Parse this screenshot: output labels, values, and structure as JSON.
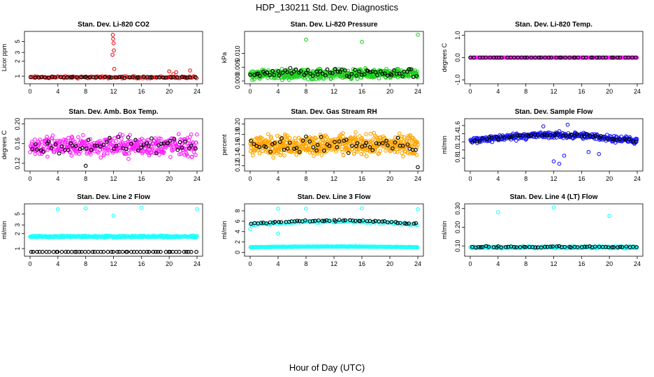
{
  "figure": {
    "title": "HDP_130211  Std. Dev. Diagnostics",
    "xlabel": "Hour of Day (UTC)"
  },
  "colors": {
    "reference": "#000000",
    "red": "#e41a1c",
    "green": "#1fd01f",
    "magenta": "#ff1fff",
    "orange": "#ffa500",
    "blue": "#1a1aff",
    "cyan": "#1fffff"
  },
  "chart_data": [
    {
      "type": "scatter",
      "title": "Stan. Dev. Li-820 CO2",
      "ylabel": "Licor ppm",
      "xlim": [
        0,
        24
      ],
      "ylim": [
        0.8,
        7
      ],
      "yscale": "log",
      "xticks": [
        "0",
        "4",
        "8",
        "12",
        "16",
        "20",
        "24"
      ],
      "yticks": [
        1,
        2,
        3,
        5
      ],
      "series": [
        {
          "color": "#e41a1c",
          "baseline": 0.95,
          "spread": 0.07,
          "count": 140,
          "outliers": [
            [
              11.9,
              6.8
            ],
            [
              11.95,
              5.6
            ],
            [
              12.0,
              4.6
            ],
            [
              12.05,
              3.3
            ],
            [
              11.85,
              2.7
            ],
            [
              12.1,
              1.4
            ],
            [
              20.0,
              1.25
            ],
            [
              21.0,
              1.2
            ],
            [
              23.0,
              1.3
            ],
            [
              20.6,
              1.1
            ]
          ]
        },
        {
          "color": "#000000",
          "baseline": 0.95,
          "spread": 0.04,
          "count": 48,
          "outliers": []
        }
      ]
    },
    {
      "type": "scatter",
      "title": "Stan. Dev. Li-820 Pressure",
      "ylabel": "kPa",
      "xlim": [
        0,
        24
      ],
      "ylim": [
        0,
        0.017
      ],
      "yscale": "linear",
      "xticks": [
        "0",
        "4",
        "8",
        "12",
        "16",
        "20",
        "24"
      ],
      "yticks": [
        0.0,
        0.005,
        0.01
      ],
      "ytick_labels": [
        "0.000",
        "0.005",
        "0.010"
      ],
      "series": [
        {
          "color": "#1fd01f",
          "baseline": 0.0025,
          "spread": 0.0025,
          "count": 520,
          "outliers": [
            [
              8.0,
              0.015
            ],
            [
              16.0,
              0.0142
            ],
            [
              24.0,
              0.0168
            ]
          ]
        },
        {
          "color": "#000000",
          "baseline": 0.003,
          "spread": 0.0025,
          "count": 70,
          "outliers": []
        }
      ]
    },
    {
      "type": "scatter",
      "title": "Stan. Dev. Li-820 Temp.",
      "ylabel": "degrees C",
      "xlim": [
        0,
        24
      ],
      "ylim": [
        -1.05,
        1.05
      ],
      "yscale": "linear",
      "xticks": [
        "0",
        "4",
        "8",
        "12",
        "16",
        "20",
        "24"
      ],
      "yticks": [
        -1.0,
        0.0,
        1.0
      ],
      "ytick_labels": [
        "-1.0",
        "0.0",
        "1.0"
      ],
      "series": [
        {
          "color": "#ff1fff",
          "baseline": 0.0,
          "spread": 0.0,
          "count": 260,
          "outliers": []
        },
        {
          "color": "#000000",
          "baseline": 0.0,
          "spread": 0.0,
          "count": 48,
          "outliers": []
        }
      ]
    },
    {
      "type": "scatter",
      "title": "Stan. Dev. Amb. Box Temp.",
      "ylabel": "degrees C",
      "xlim": [
        0,
        24
      ],
      "ylim": [
        0.11,
        0.205
      ],
      "yscale": "linear",
      "xticks": [
        "0",
        "4",
        "8",
        "12",
        "16",
        "20",
        "24"
      ],
      "yticks": [
        0.12,
        0.16,
        0.2
      ],
      "ytick_labels": [
        "0.12",
        "0.16",
        "0.20"
      ],
      "series": [
        {
          "color": "#ff1fff",
          "baseline": 0.155,
          "spread": 0.03,
          "count": 420,
          "outliers": []
        },
        {
          "color": "#000000",
          "baseline": 0.155,
          "spread": 0.025,
          "count": 55,
          "outliers": [
            [
              8.0,
              0.115
            ]
          ]
        }
      ]
    },
    {
      "type": "scatter",
      "title": "Stan. Dev. Gas Stream RH",
      "ylabel": "percent",
      "xlim": [
        0,
        24
      ],
      "ylim": [
        0.115,
        0.205
      ],
      "yscale": "linear",
      "xticks": [
        "0",
        "4",
        "8",
        "12",
        "16",
        "20",
        "24"
      ],
      "yticks": [
        0.12,
        0.14,
        0.16,
        0.18,
        0.2
      ],
      "ytick_labels": [
        "0.12",
        "0.14",
        "0.16",
        "0.18",
        "0.20"
      ],
      "series": [
        {
          "color": "#ffa500",
          "baseline": 0.16,
          "spread": 0.028,
          "count": 560,
          "outliers": []
        },
        {
          "color": "#000000",
          "baseline": 0.16,
          "spread": 0.022,
          "count": 55,
          "outliers": [
            [
              24.0,
              0.117
            ]
          ]
        }
      ]
    },
    {
      "type": "scatter",
      "title": "Stan. Dev. Sample Flow",
      "ylabel": "ml/min",
      "xlim": [
        0,
        24
      ],
      "ylim": [
        0.55,
        1.7
      ],
      "yscale": "linear",
      "xticks": [
        "0",
        "4",
        "8",
        "12",
        "16",
        "20",
        "24"
      ],
      "yticks": [
        0.8,
        1.0,
        1.2,
        1.4,
        1.6
      ],
      "ytick_labels": [
        "0.8",
        "1.0",
        "1.2",
        "1.4",
        "1.6"
      ],
      "trend": "arch",
      "series": [
        {
          "color": "#1a1aff",
          "baseline": 1.22,
          "spread": 0.12,
          "count": 380,
          "outliers": [
            [
              10.5,
              1.58
            ],
            [
              12.0,
              0.72
            ],
            [
              12.8,
              0.66
            ],
            [
              13.5,
              0.86
            ],
            [
              17.0,
              0.95
            ],
            [
              18.5,
              0.9
            ],
            [
              14.0,
              1.62
            ]
          ]
        },
        {
          "color": "#000000",
          "baseline": 1.22,
          "spread": 0.06,
          "count": 55,
          "outliers": []
        }
      ]
    },
    {
      "type": "scatter",
      "title": "Stan. Dev. Line 2 Flow",
      "ylabel": "ml/min",
      "xlim": [
        0,
        24
      ],
      "ylim": [
        0.8,
        7
      ],
      "yscale": "log",
      "xticks": [
        "0",
        "4",
        "8",
        "12",
        "16",
        "20",
        "24"
      ],
      "yticks": [
        1,
        2,
        3,
        5
      ],
      "series": [
        {
          "color": "#1fffff",
          "baseline": 1.75,
          "spread": 0.1,
          "count": 420,
          "outliers": [
            [
              4.0,
              6.2
            ],
            [
              8.0,
              6.5
            ],
            [
              12.0,
              4.6
            ],
            [
              16.0,
              6.6
            ],
            [
              24.0,
              6.2
            ]
          ]
        },
        {
          "color": "#000000",
          "baseline": 0.86,
          "spread": 0.0,
          "count": 55,
          "outliers": []
        }
      ]
    },
    {
      "type": "scatter",
      "title": "Stan. Dev. Line 3 Flow",
      "ylabel": "ml/min",
      "xlim": [
        0,
        24
      ],
      "ylim": [
        -0.2,
        8.8
      ],
      "yscale": "linear",
      "xticks": [
        "0",
        "4",
        "8",
        "12",
        "16",
        "20",
        "24"
      ],
      "yticks": [
        0,
        2,
        4,
        6,
        8
      ],
      "trend": "arch",
      "series": [
        {
          "color": "#1fffff",
          "baseline": 1.0,
          "spread": 0.1,
          "count": 300,
          "outliers": [
            [
              4.0,
              8.4
            ],
            [
              8.0,
              8.4
            ],
            [
              16.0,
              8.5
            ],
            [
              24.0,
              8.3
            ],
            [
              0.0,
              4.5
            ],
            [
              4.0,
              3.6
            ]
          ]
        },
        {
          "color": "#1fffff",
          "baseline": 5.3,
          "spread": 0.35,
          "count": 120,
          "outliers": []
        },
        {
          "color": "#000000",
          "baseline": 5.5,
          "spread": 0.25,
          "count": 55,
          "outliers": []
        }
      ]
    },
    {
      "type": "scatter",
      "title": "Stan. Dev. Line 4 (LT) Flow",
      "ylabel": "ml/min",
      "xlim": [
        0,
        24
      ],
      "ylim": [
        0.06,
        0.31
      ],
      "yscale": "linear",
      "xticks": [
        "0",
        "4",
        "8",
        "12",
        "16",
        "20",
        "24"
      ],
      "yticks": [
        0.1,
        0.2,
        0.3
      ],
      "ytick_labels": [
        "0.10",
        "0.20",
        "0.30"
      ],
      "series": [
        {
          "color": "#1fffff",
          "baseline": 0.093,
          "spread": 0.008,
          "count": 380,
          "outliers": [
            [
              4.0,
              0.28
            ],
            [
              12.0,
              0.305
            ],
            [
              20.0,
              0.26
            ]
          ]
        },
        {
          "color": "#000000",
          "baseline": 0.095,
          "spread": 0.006,
          "count": 55,
          "outliers": []
        }
      ]
    }
  ]
}
